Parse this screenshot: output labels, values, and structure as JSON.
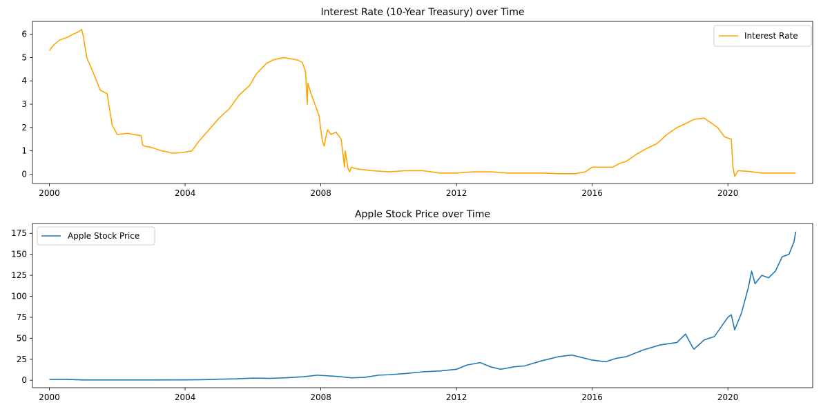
{
  "chart_data": [
    {
      "type": "line",
      "title": "Interest Rate (10-Year Treasury) over Time",
      "xlabel": "",
      "ylabel": "",
      "xlim": [
        1999.5,
        2022.5
      ],
      "ylim": [
        -0.4,
        6.55
      ],
      "xticks": [
        2000,
        2004,
        2008,
        2012,
        2016,
        2020
      ],
      "xtick_labels": [
        "2000",
        "2004",
        "2008",
        "2012",
        "2016",
        "2020"
      ],
      "yticks": [
        0,
        1,
        2,
        3,
        4,
        5,
        6
      ],
      "ytick_labels": [
        "0",
        "1",
        "2",
        "3",
        "4",
        "5",
        "6"
      ],
      "grid": false,
      "legend_position": "upper right",
      "color": "#FFA500",
      "series": [
        {
          "name": "Interest Rate",
          "x": [
            2000.0,
            2000.1,
            2000.3,
            2000.5,
            2000.7,
            2000.85,
            2000.95,
            2001.0,
            2001.1,
            2001.25,
            2001.5,
            2001.7,
            2001.75,
            2001.85,
            2002.0,
            2002.3,
            2002.7,
            2002.75,
            2002.8,
            2003.0,
            2003.3,
            2003.5,
            2003.6,
            2003.9,
            2004.2,
            2004.4,
            2004.7,
            2005.0,
            2005.3,
            2005.6,
            2005.9,
            2006.1,
            2006.4,
            2006.6,
            2006.9,
            2007.1,
            2007.3,
            2007.45,
            2007.55,
            2007.6,
            2007.62,
            2007.7,
            2007.8,
            2007.95,
            2008.0,
            2008.05,
            2008.1,
            2008.15,
            2008.2,
            2008.3,
            2008.45,
            2008.6,
            2008.7,
            2008.72,
            2008.8,
            2008.85,
            2008.9,
            2009.0,
            2009.2,
            2009.5,
            2010.0,
            2010.5,
            2011.0,
            2011.5,
            2012.0,
            2012.5,
            2013.0,
            2013.5,
            2014.0,
            2014.5,
            2015.0,
            2015.5,
            2015.8,
            2016.0,
            2016.3,
            2016.6,
            2016.8,
            2017.0,
            2017.3,
            2017.6,
            2017.9,
            2018.2,
            2018.5,
            2018.8,
            2019.0,
            2019.3,
            2019.5,
            2019.7,
            2019.9,
            2020.0,
            2020.1,
            2020.15,
            2020.2,
            2020.3,
            2020.6,
            2021.0,
            2021.5,
            2022.0
          ],
          "values": [
            5.3,
            5.5,
            5.75,
            5.85,
            6.0,
            6.1,
            6.2,
            5.9,
            5.0,
            4.5,
            3.6,
            3.45,
            3.0,
            2.1,
            1.7,
            1.75,
            1.65,
            1.25,
            1.2,
            1.15,
            1.0,
            0.95,
            0.9,
            0.92,
            1.0,
            1.4,
            1.9,
            2.4,
            2.8,
            3.4,
            3.8,
            4.3,
            4.75,
            4.9,
            5.0,
            4.95,
            4.9,
            4.8,
            4.4,
            3.0,
            3.9,
            3.5,
            3.1,
            2.5,
            1.9,
            1.4,
            1.2,
            1.6,
            1.9,
            1.7,
            1.8,
            1.5,
            0.3,
            1.0,
            0.25,
            0.1,
            0.3,
            0.25,
            0.2,
            0.15,
            0.1,
            0.15,
            0.15,
            0.05,
            0.05,
            0.1,
            0.1,
            0.05,
            0.05,
            0.05,
            0.02,
            0.02,
            0.1,
            0.3,
            0.3,
            0.3,
            0.45,
            0.55,
            0.85,
            1.1,
            1.3,
            1.7,
            2.0,
            2.2,
            2.35,
            2.4,
            2.2,
            2.0,
            1.6,
            1.55,
            1.5,
            0.3,
            -0.1,
            0.15,
            0.12,
            0.05,
            0.05,
            0.05
          ]
        }
      ]
    },
    {
      "type": "line",
      "title": "Apple Stock Price over Time",
      "xlabel": "",
      "ylabel": "",
      "xlim": [
        1999.5,
        2022.5
      ],
      "ylim": [
        -8.9,
        186.7
      ],
      "xticks": [
        2000,
        2004,
        2008,
        2012,
        2016,
        2020
      ],
      "xtick_labels": [
        "2000",
        "2004",
        "2008",
        "2012",
        "2016",
        "2020"
      ],
      "yticks": [
        0,
        25,
        50,
        75,
        100,
        125,
        150,
        175
      ],
      "ytick_labels": [
        "0",
        "25",
        "50",
        "75",
        "100",
        "125",
        "150",
        "175"
      ],
      "grid": false,
      "legend_position": "upper left",
      "color": "#1F77B4",
      "series": [
        {
          "name": "Apple Stock Price",
          "x": [
            2000.0,
            2000.5,
            2001.0,
            2002.0,
            2003.0,
            2004.0,
            2004.5,
            2005.0,
            2005.5,
            2006.0,
            2006.5,
            2007.0,
            2007.5,
            2007.9,
            2008.5,
            2008.9,
            2009.3,
            2009.7,
            2010.0,
            2010.5,
            2011.0,
            2011.5,
            2012.0,
            2012.3,
            2012.7,
            2013.0,
            2013.3,
            2013.7,
            2014.0,
            2014.5,
            2015.0,
            2015.4,
            2015.7,
            2016.0,
            2016.4,
            2016.7,
            2017.0,
            2017.5,
            2018.0,
            2018.5,
            2018.75,
            2018.95,
            2019.0,
            2019.3,
            2019.6,
            2020.0,
            2020.1,
            2020.2,
            2020.4,
            2020.6,
            2020.7,
            2020.8,
            2021.0,
            2021.2,
            2021.4,
            2021.6,
            2021.8,
            2021.95,
            2022.0
          ],
          "values": [
            1.0,
            1.0,
            0.3,
            0.3,
            0.3,
            0.4,
            0.6,
            1.2,
            1.6,
            2.5,
            2.2,
            3.0,
            4.2,
            6.0,
            4.5,
            2.8,
            3.5,
            6.0,
            6.5,
            8.0,
            10.0,
            11.0,
            13.0,
            18.0,
            21.0,
            16.0,
            13.0,
            16.0,
            17.0,
            23.0,
            28.0,
            30.0,
            27.0,
            24.0,
            22.0,
            26.0,
            28.0,
            36.0,
            42.0,
            45.0,
            55.0,
            40.0,
            37.0,
            48.0,
            52.0,
            75.0,
            78.0,
            60.0,
            80.0,
            110.0,
            130.0,
            115.0,
            125.0,
            122.0,
            130.0,
            147.0,
            150.0,
            165.0,
            177.0
          ]
        }
      ]
    }
  ]
}
